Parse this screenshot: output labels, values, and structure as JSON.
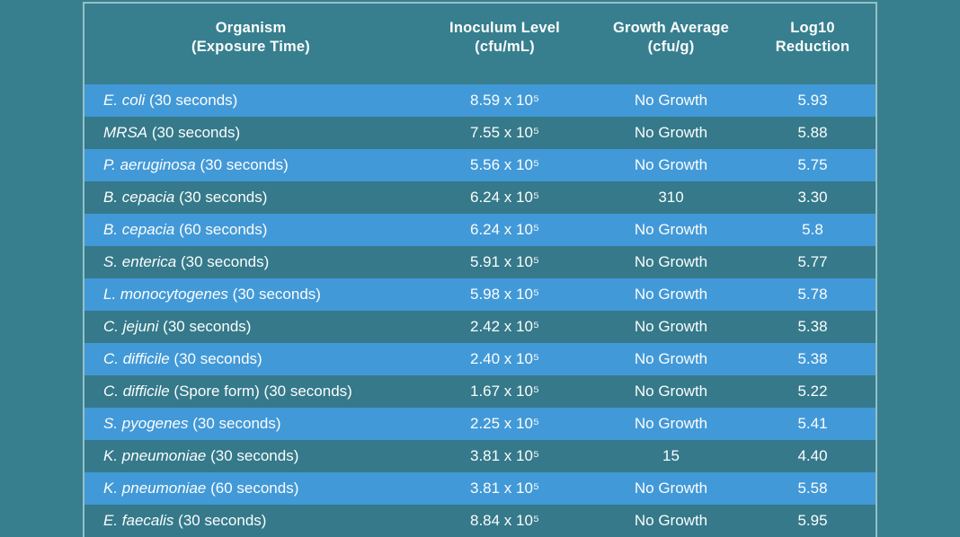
{
  "colors": {
    "page_background": "#377F8E",
    "row_dark": "#35798A",
    "row_light": "#4299D8",
    "table_border": "rgba(234,244,244,0.55)",
    "text": "#FBFDFD"
  },
  "table": {
    "columns": [
      {
        "line1": "Organism",
        "line2": "(Exposure Time)"
      },
      {
        "line1": "Inoculum Level",
        "line2": "(cfu/mL)"
      },
      {
        "line1": "Growth Average",
        "line2": "(cfu/g)"
      },
      {
        "line1": "Log10",
        "line2": "Reduction"
      }
    ],
    "rows": [
      {
        "organism": "E. coli",
        "exposure": "(30 seconds)",
        "inoculum": "8.59 x 10⁵",
        "growth": "No Growth",
        "log_reduction": "5.93"
      },
      {
        "organism": "MRSA",
        "exposure": "(30 seconds)",
        "inoculum": "7.55 x 10⁵",
        "growth": "No Growth",
        "log_reduction": "5.88"
      },
      {
        "organism": "P. aeruginosa",
        "exposure": "(30 seconds)",
        "inoculum": "5.56 x 10⁵",
        "growth": "No Growth",
        "log_reduction": "5.75"
      },
      {
        "organism": "B. cepacia",
        "exposure": "(30 seconds)",
        "inoculum": "6.24 x 10⁵",
        "growth": "310",
        "log_reduction": "3.30"
      },
      {
        "organism": "B. cepacia",
        "exposure": "(60 seconds)",
        "inoculum": "6.24 x 10⁵",
        "growth": "No Growth",
        "log_reduction": "5.8"
      },
      {
        "organism": "S. enterica",
        "exposure": "(30 seconds)",
        "inoculum": "5.91 x 10⁵",
        "growth": "No Growth",
        "log_reduction": "5.77"
      },
      {
        "organism": "L. monocytogenes",
        "exposure": "(30 seconds)",
        "inoculum": "5.98 x 10⁵",
        "growth": "No Growth",
        "log_reduction": "5.78"
      },
      {
        "organism": "C. jejuni",
        "exposure": "(30 seconds)",
        "inoculum": "2.42 x 10⁵",
        "growth": "No Growth",
        "log_reduction": "5.38"
      },
      {
        "organism": "C. difficile",
        "exposure": "(30 seconds)",
        "inoculum": "2.40 x 10⁵",
        "growth": "No Growth",
        "log_reduction": "5.38"
      },
      {
        "organism": "C. difficile",
        "exposure": "(Spore form) (30 seconds)",
        "inoculum": "1.67 x 10⁵",
        "growth": "No Growth",
        "log_reduction": "5.22"
      },
      {
        "organism": "S. pyogenes",
        "exposure": "(30 seconds)",
        "inoculum": "2.25 x 10⁵",
        "growth": "No Growth",
        "log_reduction": "5.41"
      },
      {
        "organism": "K. pneumoniae",
        "exposure": "(30 seconds)",
        "inoculum": "3.81 x 10⁵",
        "growth": "15",
        "log_reduction": "4.40"
      },
      {
        "organism": "K. pneumoniae",
        "exposure": "(60 seconds)",
        "inoculum": "3.81 x 10⁵",
        "growth": "No Growth",
        "log_reduction": "5.58"
      },
      {
        "organism": "E. faecalis",
        "exposure": "(30 seconds)",
        "inoculum": "8.84 x 10⁵",
        "growth": "No Growth",
        "log_reduction": "5.95"
      }
    ]
  },
  "chart_data": {
    "type": "table",
    "columns": [
      "Organism (Exposure Time)",
      "Inoculum Level (cfu/mL)",
      "Growth Average (cfu/g)",
      "Log10 Reduction"
    ],
    "rows": [
      [
        "E. coli (30 seconds)",
        "8.59 x 10⁵",
        "No Growth",
        5.93
      ],
      [
        "MRSA (30 seconds)",
        "7.55 x 10⁵",
        "No Growth",
        5.88
      ],
      [
        "P. aeruginosa (30 seconds)",
        "5.56 x 10⁵",
        "No Growth",
        5.75
      ],
      [
        "B. cepacia (30 seconds)",
        "6.24 x 10⁵",
        "310",
        3.3
      ],
      [
        "B. cepacia (60 seconds)",
        "6.24 x 10⁵",
        "No Growth",
        5.8
      ],
      [
        "S. enterica (30 seconds)",
        "5.91 x 10⁵",
        "No Growth",
        5.77
      ],
      [
        "L. monocytogenes (30 seconds)",
        "5.98 x 10⁵",
        "No Growth",
        5.78
      ],
      [
        "C. jejuni (30 seconds)",
        "2.42 x 10⁵",
        "No Growth",
        5.38
      ],
      [
        "C. difficile (30 seconds)",
        "2.40 x 10⁵",
        "No Growth",
        5.38
      ],
      [
        "C. difficile (Spore form) (30 seconds)",
        "1.67 x 10⁵",
        "No Growth",
        5.22
      ],
      [
        "S. pyogenes (30 seconds)",
        "2.25 x 10⁵",
        "No Growth",
        5.41
      ],
      [
        "K. pneumoniae (30 seconds)",
        "3.81 x 10⁵",
        "15",
        4.4
      ],
      [
        "K. pneumoniae (60 seconds)",
        "3.81 x 10⁵",
        "No Growth",
        5.58
      ],
      [
        "E. faecalis (30 seconds)",
        "8.84 x 10⁵",
        "No Growth",
        5.95
      ]
    ]
  }
}
